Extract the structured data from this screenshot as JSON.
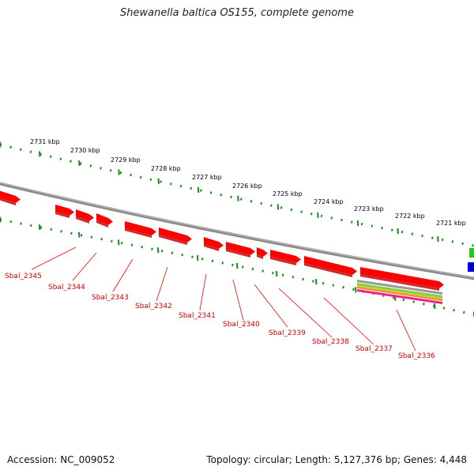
{
  "title": "Shewanella baltica OS155, complete genome",
  "footer": {
    "accession": "Accession: NC_009052",
    "summary": "Topology: circular; Length: 5,127,376 bp; Genes: 4,448"
  },
  "kbp_labels": [
    "2731 kbp",
    "2730 kbp",
    "2729 kbp",
    "2728 kbp",
    "2727 kbp",
    "2726 kbp",
    "2725 kbp",
    "2724 kbp",
    "2723 kbp",
    "2722 kbp",
    "2721 kbp"
  ],
  "gene_labels": [
    "Sbal_2345",
    "Sbal_2344",
    "Sbal_2343",
    "Sbal_2342",
    "Sbal_2341",
    "Sbal_2340",
    "Sbal_2339",
    "Sbal_2338",
    "Sbal_2337",
    "Sbal_2336"
  ],
  "colors": {
    "backbone": "#808080",
    "gene_forward": "#ff0000",
    "gene_label": "#cc0000",
    "tick": "#1a8a1a",
    "feature_blue": "#0000dd",
    "feature_green": "#22cc22"
  }
}
